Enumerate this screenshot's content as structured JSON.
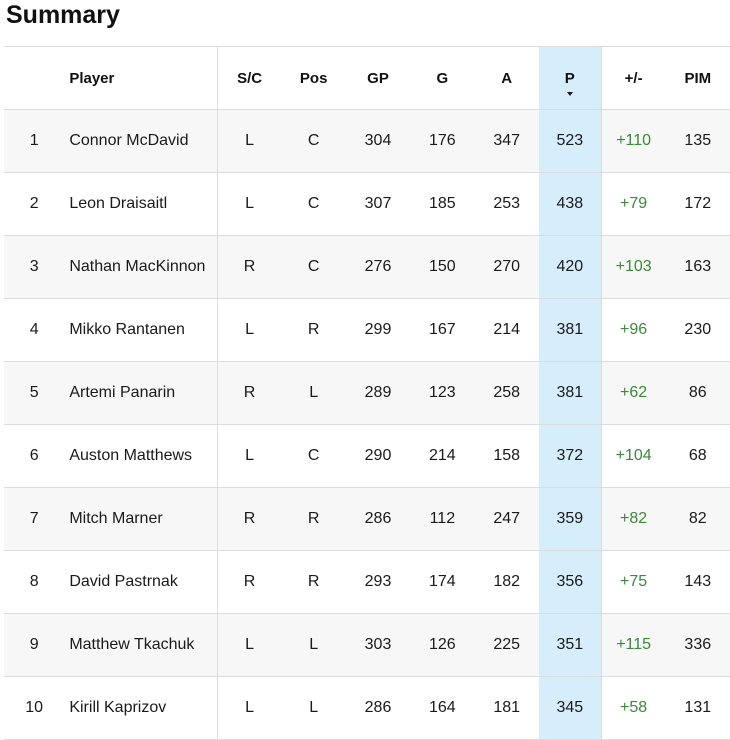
{
  "title": "Summary",
  "colors": {
    "sorted_bg": "#d6eefc",
    "plus_minus": "#3a8a3a",
    "row_alt": "#f7f7f7"
  },
  "columns": {
    "rank": "",
    "player": "Player",
    "sc": "S/C",
    "pos": "Pos",
    "gp": "GP",
    "g": "G",
    "a": "A",
    "p": "P",
    "pm": "+/-",
    "pim": "PIM"
  },
  "sort": {
    "column": "P",
    "direction": "descending",
    "icon": "sort-descending-icon"
  },
  "rows": [
    {
      "rank": "1",
      "player": "Connor McDavid",
      "sc": "L",
      "pos": "C",
      "gp": "304",
      "g": "176",
      "a": "347",
      "p": "523",
      "pm": "+110",
      "pim": "135"
    },
    {
      "rank": "2",
      "player": "Leon Draisaitl",
      "sc": "L",
      "pos": "C",
      "gp": "307",
      "g": "185",
      "a": "253",
      "p": "438",
      "pm": "+79",
      "pim": "172"
    },
    {
      "rank": "3",
      "player": "Nathan MacKinnon",
      "sc": "R",
      "pos": "C",
      "gp": "276",
      "g": "150",
      "a": "270",
      "p": "420",
      "pm": "+103",
      "pim": "163"
    },
    {
      "rank": "4",
      "player": "Mikko Rantanen",
      "sc": "L",
      "pos": "R",
      "gp": "299",
      "g": "167",
      "a": "214",
      "p": "381",
      "pm": "+96",
      "pim": "230"
    },
    {
      "rank": "5",
      "player": "Artemi Panarin",
      "sc": "R",
      "pos": "L",
      "gp": "289",
      "g": "123",
      "a": "258",
      "p": "381",
      "pm": "+62",
      "pim": "86"
    },
    {
      "rank": "6",
      "player": "Auston Matthews",
      "sc": "L",
      "pos": "C",
      "gp": "290",
      "g": "214",
      "a": "158",
      "p": "372",
      "pm": "+104",
      "pim": "68"
    },
    {
      "rank": "7",
      "player": "Mitch Marner",
      "sc": "R",
      "pos": "R",
      "gp": "286",
      "g": "112",
      "a": "247",
      "p": "359",
      "pm": "+82",
      "pim": "82"
    },
    {
      "rank": "8",
      "player": "David Pastrnak",
      "sc": "R",
      "pos": "R",
      "gp": "293",
      "g": "174",
      "a": "182",
      "p": "356",
      "pm": "+75",
      "pim": "143"
    },
    {
      "rank": "9",
      "player": "Matthew Tkachuk",
      "sc": "L",
      "pos": "L",
      "gp": "303",
      "g": "126",
      "a": "225",
      "p": "351",
      "pm": "+115",
      "pim": "336"
    },
    {
      "rank": "10",
      "player": "Kirill Kaprizov",
      "sc": "L",
      "pos": "L",
      "gp": "286",
      "g": "164",
      "a": "181",
      "p": "345",
      "pm": "+58",
      "pim": "131"
    }
  ]
}
